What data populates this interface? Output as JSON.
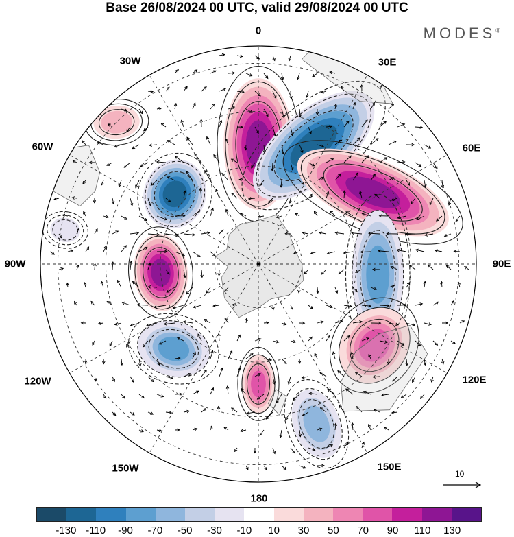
{
  "title": "Base 26/08/2024 00 UTC, valid 29/08/2024 00 UTC",
  "brand": "MODES",
  "brand_mark": "®",
  "longitude_labels": {
    "lon_0": "0",
    "lon_30e": "30E",
    "lon_60e": "60E",
    "lon_90e": "90E",
    "lon_120e": "120E",
    "lon_150e": "150E",
    "lon_180": "180",
    "lon_150w": "150W",
    "lon_120w": "120W",
    "lon_90w": "90W",
    "lon_60w": "60W",
    "lon_30w": "30W"
  },
  "reference_vector": {
    "label": "10",
    "value": 10
  },
  "colorbar": {
    "colors": [
      "#1b4a68",
      "#1d6694",
      "#2f80bd",
      "#5d9fd0",
      "#8fb6dd",
      "#c3cfe6",
      "#e6e3f1",
      "#ffffff",
      "#fadbdb",
      "#f4b3bf",
      "#ee86b3",
      "#e054a8",
      "#c41f9c",
      "#8e1694",
      "#58148a"
    ],
    "ticks": [
      "-130",
      "-110",
      "-90",
      "-70",
      "-50",
      "-30",
      "-10",
      "10",
      "30",
      "50",
      "70",
      "90",
      "110",
      "130"
    ]
  },
  "anomalies": [
    {
      "name": "positive-anomaly-lon0",
      "lon": 0,
      "dist": 0.55,
      "value": 125,
      "rx": 0.18,
      "ry": 0.34,
      "rot": 0
    },
    {
      "name": "negative-anomaly-lon25e",
      "lon": 25,
      "dist": 0.6,
      "value": -130,
      "rx": 0.18,
      "ry": 0.38,
      "rot": 25
    },
    {
      "name": "positive-anomaly-lon58e",
      "lon": 58,
      "dist": 0.62,
      "value": 125,
      "rx": 0.17,
      "ry": 0.42,
      "rot": 55
    },
    {
      "name": "negative-anomaly-lon95e",
      "lon": 95,
      "dist": 0.55,
      "value": -85,
      "rx": 0.14,
      "ry": 0.35,
      "rot": 85
    },
    {
      "name": "positive-anomaly-lon125e",
      "lon": 125,
      "dist": 0.65,
      "value": 75,
      "rx": 0.22,
      "ry": 0.18,
      "rot": 0
    },
    {
      "name": "negative-anomaly-lon160e",
      "lon": 160,
      "dist": 0.78,
      "value": -65,
      "rx": 0.13,
      "ry": 0.2,
      "rot": 0
    },
    {
      "name": "positive-anomaly-lon180",
      "lon": 180,
      "dist": 0.55,
      "value": 85,
      "rx": 0.09,
      "ry": 0.16,
      "rot": 0
    },
    {
      "name": "negative-anomaly-lon135w",
      "lon": -135,
      "dist": 0.55,
      "value": -75,
      "rx": 0.2,
      "ry": 0.15,
      "rot": -30
    },
    {
      "name": "positive-anomaly-lon95w",
      "lon": -95,
      "dist": 0.45,
      "value": 125,
      "rx": 0.2,
      "ry": 0.14,
      "rot": 0
    },
    {
      "name": "negative-anomaly-lon50w",
      "lon": -50,
      "dist": 0.5,
      "value": -130,
      "rx": 0.18,
      "ry": 0.16,
      "rot": -20
    },
    {
      "name": "positive-anomaly-lon45w",
      "lon": -45,
      "dist": 0.92,
      "value": 45,
      "rx": 0.14,
      "ry": 0.1,
      "rot": 40
    },
    {
      "name": "negative-anomaly-lon80w",
      "lon": -80,
      "dist": 0.9,
      "value": -30,
      "rx": 0.08,
      "ry": 0.1,
      "rot": 0
    }
  ]
}
